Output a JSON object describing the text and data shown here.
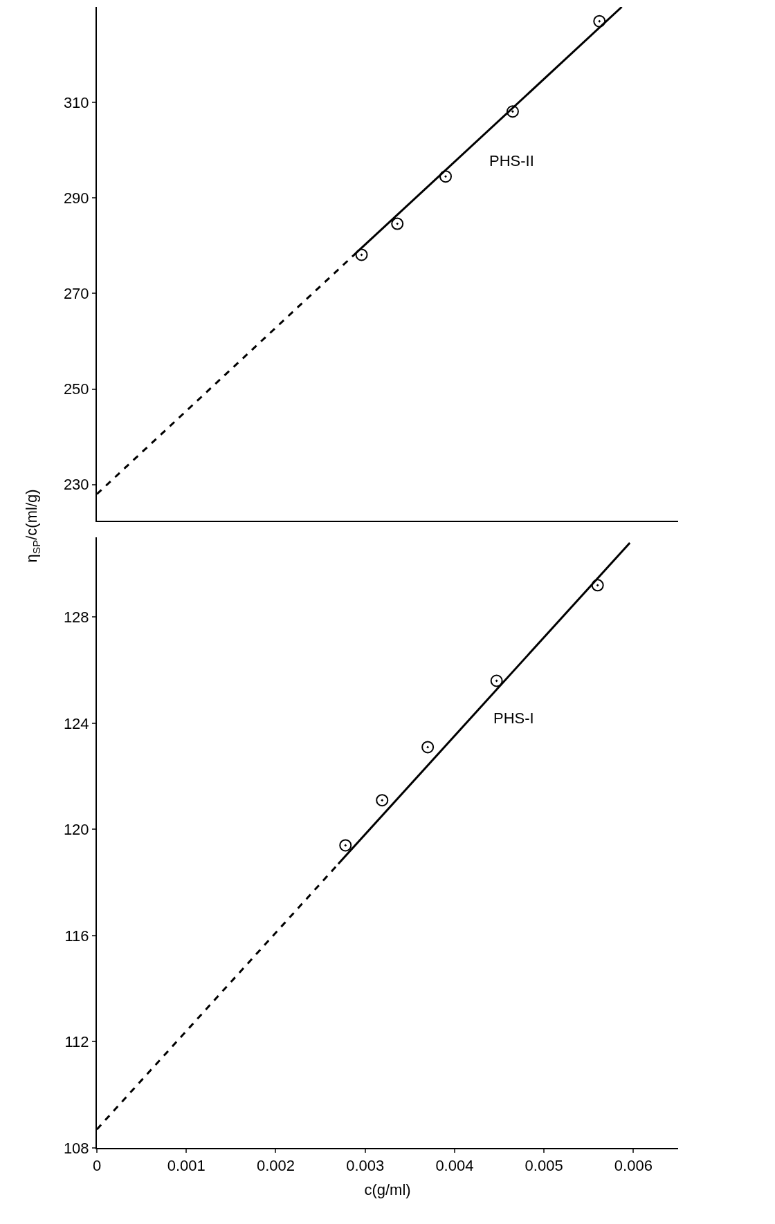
{
  "chart_data": [
    {
      "type": "scatter",
      "xlim": [
        0,
        0.0065
      ],
      "xticks": [
        0,
        0.001,
        0.002,
        0.003,
        0.004,
        0.005,
        0.006
      ],
      "ylim": [
        222.5,
        330
      ],
      "yticks": [
        230,
        250,
        270,
        290,
        310
      ],
      "tick_labels": "y",
      "series": [
        {
          "color": "#000000",
          "marker": "circle",
          "x": [
            0.00296,
            0.00336,
            0.0039,
            0.00465,
            0.00562
          ],
          "values": [
            278.1,
            284.6,
            294.5,
            308.1,
            327.0
          ]
        },
        {
          "type": "line",
          "color": "#000000",
          "line_style": "dashed",
          "marker": "none",
          "x": [
            0,
            0.0029
          ],
          "values": [
            228,
            278.5
          ]
        },
        {
          "type": "line",
          "color": "#000000",
          "line_style": "solid",
          "marker": "none",
          "x": [
            0.0029,
            0.00587
          ],
          "values": [
            278.5,
            330
          ]
        }
      ],
      "annotations": [
        "PHS-II"
      ]
    },
    {
      "type": "scatter",
      "xlim": [
        0,
        0.0065
      ],
      "xticks": [
        0,
        0.001,
        0.002,
        0.003,
        0.004,
        0.005,
        0.006
      ],
      "ylim": [
        108,
        131
      ],
      "yticks": [
        108,
        112,
        116,
        120,
        124,
        128
      ],
      "xlabel": "c(g/ml)",
      "ylabel": "η$_{SP}$/c(ml/g)",
      "series": [
        {
          "color": "#000000",
          "marker": "circle",
          "x": [
            0.00278,
            0.00319,
            0.0037,
            0.00447,
            0.0056
          ],
          "values": [
            119.4,
            121.1,
            123.1,
            125.6,
            129.2
          ]
        },
        {
          "type": "line",
          "color": "#000000",
          "line_style": "dashed",
          "marker": "none",
          "x": [
            0,
            0.0027
          ],
          "values": [
            108.7,
            118.7
          ]
        },
        {
          "type": "line",
          "color": "#000000",
          "line_style": "solid",
          "marker": "none",
          "x": [
            0.0027,
            0.00596
          ],
          "values": [
            118.7,
            130.8
          ]
        }
      ],
      "annotations": [
        "PHS-I"
      ]
    }
  ]
}
